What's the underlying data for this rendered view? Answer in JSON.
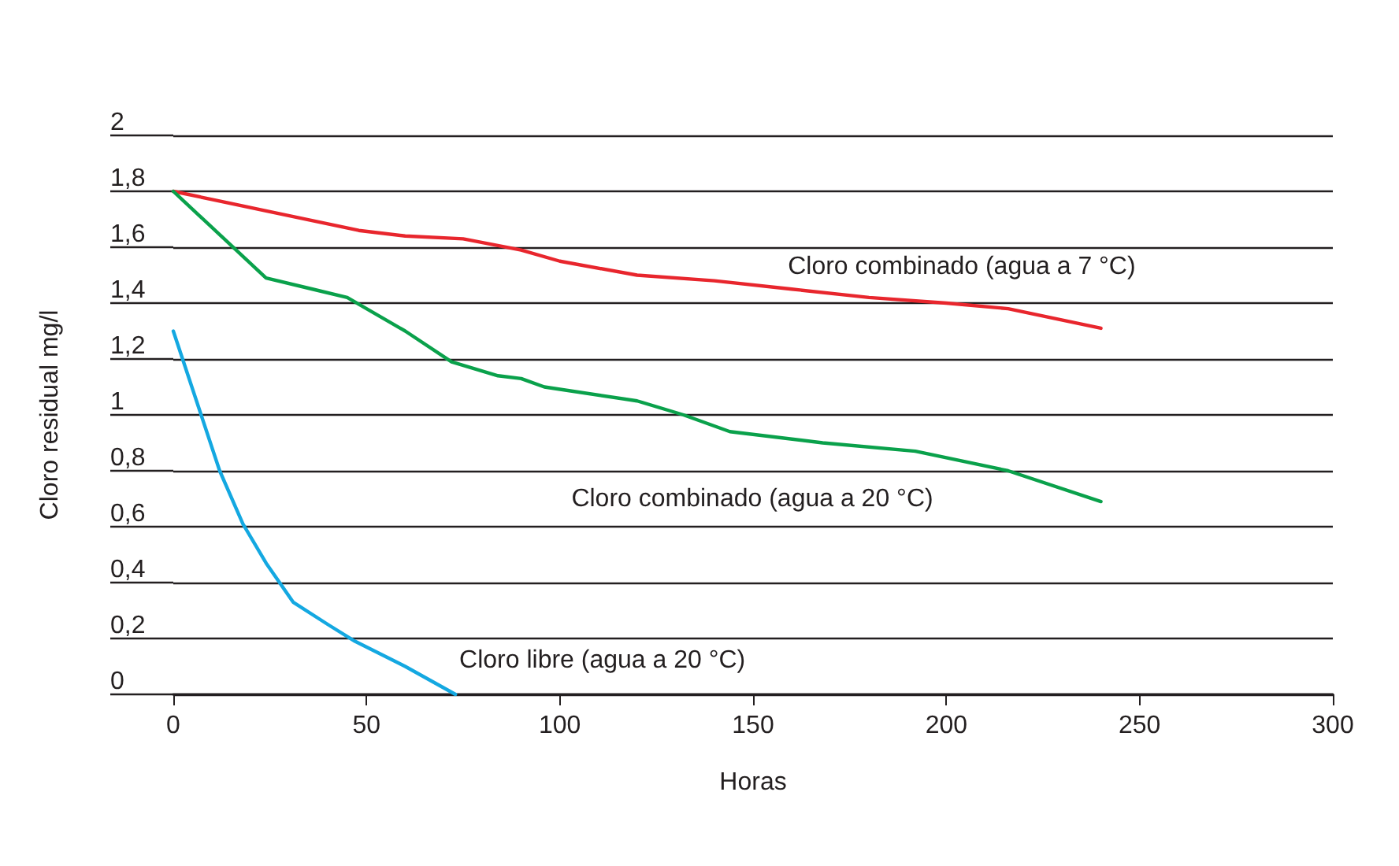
{
  "chart_data": {
    "type": "line",
    "xlabel": "Horas",
    "ylabel": "Cloro residual mg/l",
    "series": [
      {
        "name": "Cloro combinado (agua a 7 °C)",
        "color": "#e8262d",
        "x": [
          0,
          24,
          48,
          60,
          75,
          90,
          100,
          120,
          140,
          160,
          180,
          200,
          216,
          240
        ],
        "values": [
          1.8,
          1.73,
          1.66,
          1.64,
          1.63,
          1.59,
          1.55,
          1.5,
          1.48,
          1.45,
          1.42,
          1.4,
          1.38,
          1.31
        ]
      },
      {
        "name": "Cloro combinado (agua a 20 °C)",
        "color": "#0aa14b",
        "x": [
          0,
          24,
          36,
          45,
          50,
          60,
          72,
          84,
          90,
          96,
          120,
          132,
          144,
          168,
          192,
          216,
          240
        ],
        "values": [
          1.8,
          1.49,
          1.45,
          1.42,
          1.38,
          1.3,
          1.19,
          1.14,
          1.13,
          1.1,
          1.05,
          1.0,
          0.94,
          0.9,
          0.87,
          0.8,
          0.69
        ]
      },
      {
        "name": "Cloro libre (agua a 20 °C)",
        "color": "#14a8e1",
        "x": [
          0,
          6,
          12,
          18,
          24,
          31,
          40,
          47,
          60,
          73
        ],
        "values": [
          1.3,
          1.05,
          0.8,
          0.61,
          0.47,
          0.33,
          0.25,
          0.19,
          0.1,
          0
        ]
      }
    ],
    "xlim": [
      0,
      300
    ],
    "xticks": [
      0,
      50,
      100,
      150,
      200,
      250,
      300
    ],
    "ylim": [
      0,
      2
    ],
    "yticks": [
      0,
      {
        "value": 0.2,
        "label": "0,2"
      },
      {
        "value": 0.4,
        "label": "0,4"
      },
      {
        "value": 0.6,
        "label": "0,6"
      },
      {
        "value": 0.8,
        "label": "0,8"
      },
      1,
      {
        "value": 1.2,
        "label": "1,2"
      },
      {
        "value": 1.4,
        "label": "1,4"
      },
      {
        "value": 1.6,
        "label": "1,6"
      },
      {
        "value": 1.8,
        "label": "1,8"
      },
      2
    ],
    "grid": "y",
    "marker": "none",
    "line_style": "solid"
  }
}
